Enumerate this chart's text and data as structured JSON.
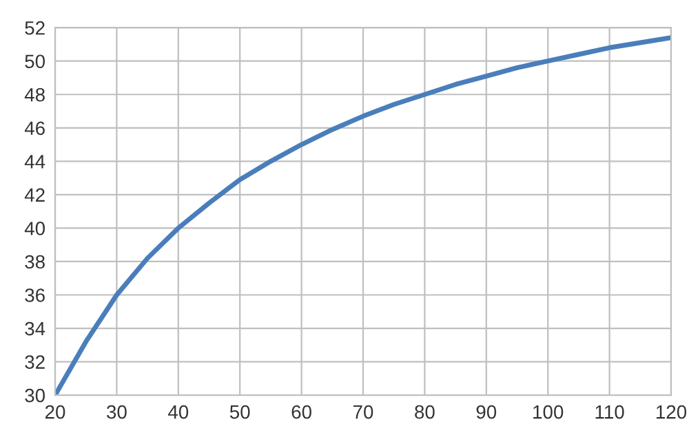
{
  "chart_data": {
    "type": "line",
    "x": [
      20,
      25,
      30,
      35,
      40,
      45,
      50,
      55,
      60,
      65,
      70,
      75,
      80,
      85,
      90,
      95,
      100,
      105,
      110,
      115,
      120
    ],
    "series": [
      {
        "color": "#4a7ebb",
        "values": [
          30,
          33.2,
          36,
          38.2,
          40,
          41.5,
          42.9,
          44,
          45,
          45.9,
          46.7,
          47.4,
          48,
          48.6,
          49.1,
          49.6,
          50,
          50.4,
          50.8,
          51.1,
          51.4
        ]
      }
    ],
    "xlim": [
      20,
      120
    ],
    "ylim": [
      30,
      52
    ],
    "xticks": [
      20,
      30,
      40,
      50,
      60,
      70,
      80,
      90,
      100,
      110,
      120
    ],
    "yticks": [
      30,
      32,
      34,
      36,
      38,
      40,
      42,
      44,
      46,
      48,
      50,
      52
    ],
    "grid": true,
    "marker": "none",
    "line_style": "solid"
  }
}
